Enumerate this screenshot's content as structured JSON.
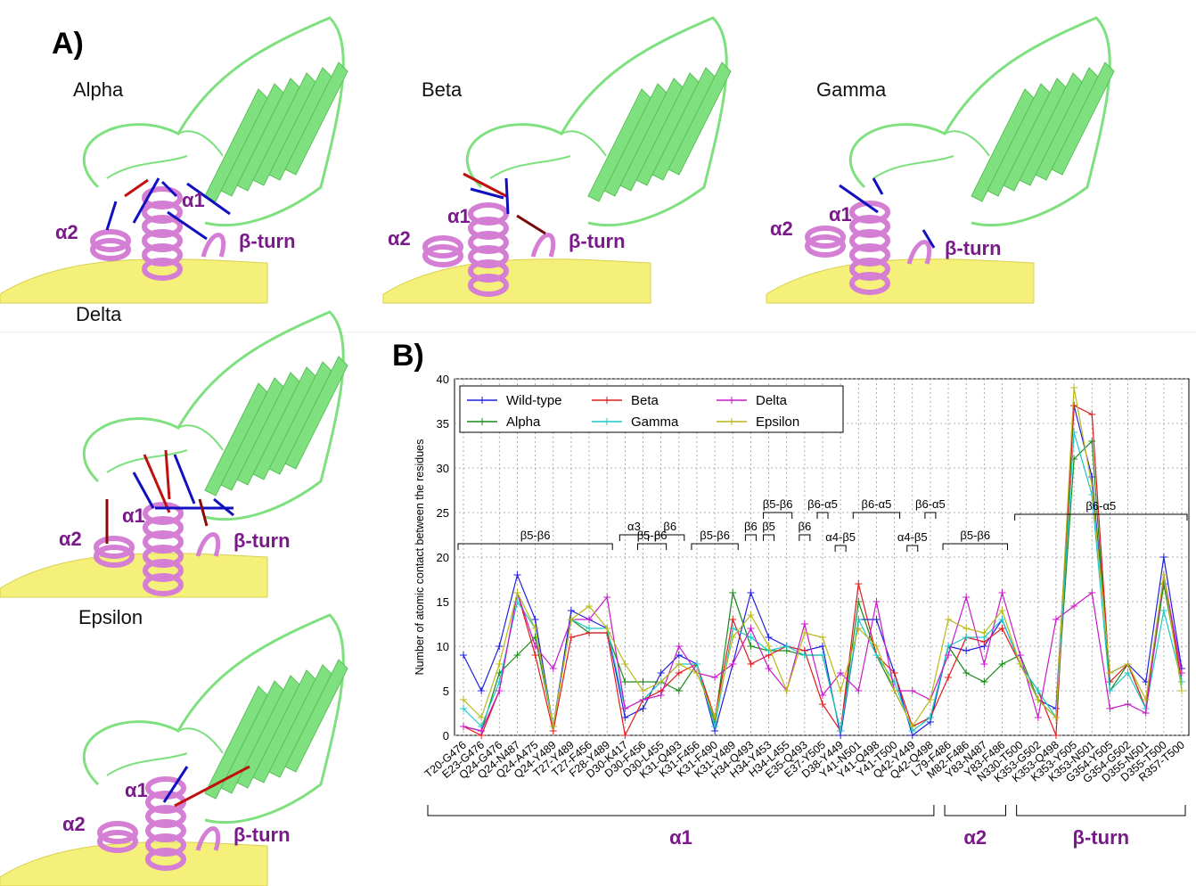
{
  "panelA": {
    "letter": "A)",
    "structures": [
      {
        "name": "Alpha",
        "key": "alpha"
      },
      {
        "name": "Beta",
        "key": "beta"
      },
      {
        "name": "Gamma",
        "key": "gamma"
      },
      {
        "name": "Delta",
        "key": "delta"
      },
      {
        "name": "Epsilon",
        "key": "epsilon"
      }
    ],
    "region_labels": {
      "a1": "α1",
      "a2": "α2",
      "bturn": "β-turn"
    }
  },
  "panelB": {
    "letter": "B)"
  },
  "colors": {
    "wild_type": "#1f1fe0",
    "alpha": "#1a8a1a",
    "beta": "#e01a1a",
    "gamma": "#1ac8c8",
    "delta": "#c81ac8",
    "epsilon": "#b8b81a",
    "ace2": "#7fe07f",
    "rbd": "#f5f07a",
    "helix": "#d47fd4",
    "label": "#7a1a8a"
  },
  "chart_data": {
    "type": "line",
    "ylabel": "Number of atomic contact between the residues",
    "ylim": [
      0,
      40
    ],
    "yticks": [
      0,
      5,
      10,
      15,
      20,
      25,
      30,
      35,
      40
    ],
    "grid": true,
    "legend_position": "top-left",
    "categories": [
      "T20-G476",
      "E23-G476",
      "Q24-G476",
      "Q24-N487",
      "Q24-A475",
      "Q24-Y489",
      "T27-Y489",
      "T27-F456",
      "F28-Y489",
      "D30-K417",
      "D30-F456",
      "D30-L455",
      "K31-Q493",
      "K31-F456",
      "K31-F490",
      "K31-Y489",
      "H34-Q493",
      "H34-Y453",
      "H34-L455",
      "E35-Q493",
      "E37-Y505",
      "D38-Y449",
      "Y41-N501",
      "Y41-Q498",
      "Y41-T500",
      "Q42-Y449",
      "Q42-Q498",
      "L79-F486",
      "M82-F486",
      "Y83-N487",
      "Y83-F486",
      "N330-T500",
      "K353-G502",
      "K353-Q498",
      "K353-Y505",
      "K353-N501",
      "G354-Y505",
      "G354-G502",
      "D355-N501",
      "D355-T500",
      "R357-T500"
    ],
    "series": [
      {
        "name": "Wild-type",
        "color": "#1f1fe0",
        "values": [
          9,
          5,
          10,
          18,
          13,
          1,
          14,
          13,
          12,
          2,
          3,
          7,
          9,
          8,
          0.5,
          8,
          16,
          11,
          10,
          9.5,
          10,
          0,
          13,
          13,
          7,
          0,
          1.5,
          10,
          9.5,
          10,
          13,
          8,
          4,
          3,
          37,
          29,
          7,
          8,
          6,
          20,
          7.5
        ]
      },
      {
        "name": "Alpha",
        "color": "#1a8a1a",
        "values": [
          1,
          0.5,
          7,
          9,
          11,
          1,
          13,
          11.5,
          11.5,
          6,
          6,
          6,
          5,
          8,
          1.5,
          16,
          10,
          9.5,
          9.5,
          9,
          9,
          0.5,
          15,
          9,
          5,
          1,
          2,
          10,
          7,
          6,
          8,
          9,
          4,
          2,
          31,
          33,
          5,
          8,
          3,
          17,
          6
        ]
      },
      {
        "name": "Beta",
        "color": "#e01a1a",
        "values": [
          1,
          0,
          5,
          16,
          9,
          0.5,
          11,
          11.5,
          11.5,
          0,
          4,
          5,
          7,
          8,
          2,
          13,
          8,
          9,
          10,
          9.5,
          3.5,
          0.5,
          17,
          9,
          7,
          1,
          2,
          6.5,
          11,
          10.5,
          12,
          8,
          5,
          0,
          37,
          36,
          6,
          8,
          3,
          18,
          6
        ]
      },
      {
        "name": "Gamma",
        "color": "#1ac8c8",
        "values": [
          3,
          1,
          6,
          15,
          12,
          1,
          13,
          12,
          12,
          3,
          4,
          6,
          8,
          8,
          1,
          12,
          11,
          9.5,
          10,
          9,
          9,
          0.5,
          13,
          9,
          6,
          0.5,
          2,
          10,
          11,
          11,
          13,
          8,
          5,
          2,
          34,
          27,
          5,
          7,
          3,
          14,
          6
        ]
      },
      {
        "name": "Delta",
        "color": "#c81ac8",
        "values": [
          1,
          0.5,
          5,
          16,
          10,
          7.5,
          13,
          13,
          15.5,
          3,
          4,
          4.5,
          10,
          7,
          6.5,
          8,
          12,
          7.5,
          5,
          12.5,
          4.5,
          7,
          5,
          15,
          5,
          5,
          4,
          9,
          15.5,
          8,
          16,
          9,
          2,
          13,
          14.5,
          16,
          3,
          3.5,
          2.5,
          18,
          7
        ]
      },
      {
        "name": "Epsilon",
        "color": "#b8b81a",
        "values": [
          4,
          2,
          8,
          16,
          12,
          1,
          13,
          14.5,
          12,
          8,
          5,
          6,
          8,
          7,
          2,
          11,
          13.5,
          10,
          5,
          11.5,
          11,
          5,
          12,
          10,
          5,
          1,
          4,
          13,
          12,
          11.5,
          14,
          8,
          4,
          2,
          39,
          28,
          7,
          8,
          4,
          18,
          5
        ]
      }
    ],
    "annotations": [
      {
        "text": "β5-β6",
        "from": 0,
        "to": 8,
        "y": 21.5
      },
      {
        "text": "α3",
        "from": 9,
        "to": 10,
        "y": 22.5
      },
      {
        "text": "β5-β6",
        "from": 10,
        "to": 11,
        "y": 21.5
      },
      {
        "text": "β6",
        "from": 11,
        "to": 12,
        "y": 22.5
      },
      {
        "text": "β5-β6",
        "from": 13,
        "to": 15,
        "y": 21.5
      },
      {
        "text": "β6",
        "from": 16,
        "to": 16,
        "y": 22.5
      },
      {
        "text": "β5",
        "from": 17,
        "to": 17,
        "y": 22.5
      },
      {
        "text": "β5-β6",
        "from": 17,
        "to": 18,
        "y": 25
      },
      {
        "text": "β6",
        "from": 19,
        "to": 19,
        "y": 22.5
      },
      {
        "text": "β6-α5",
        "from": 20,
        "to": 20,
        "y": 25
      },
      {
        "text": "α4-β5",
        "from": 21,
        "to": 21,
        "y": 21.3
      },
      {
        "text": "β6-α5",
        "from": 22,
        "to": 24,
        "y": 25
      },
      {
        "text": "α4-β5",
        "from": 25,
        "to": 25,
        "y": 21.3
      },
      {
        "text": "β6-α5",
        "from": 26,
        "to": 26,
        "y": 25
      },
      {
        "text": "β5-β6",
        "from": 27,
        "to": 30,
        "y": 21.5
      },
      {
        "text": "β6-α5",
        "from": 31,
        "to": 40,
        "y": 24.8
      }
    ],
    "region_groups": [
      {
        "text": "α1",
        "from": 0,
        "to": 26
      },
      {
        "text": "α2",
        "from": 27,
        "to": 30
      },
      {
        "text": "β-turn",
        "from": 31,
        "to": 40
      }
    ]
  }
}
